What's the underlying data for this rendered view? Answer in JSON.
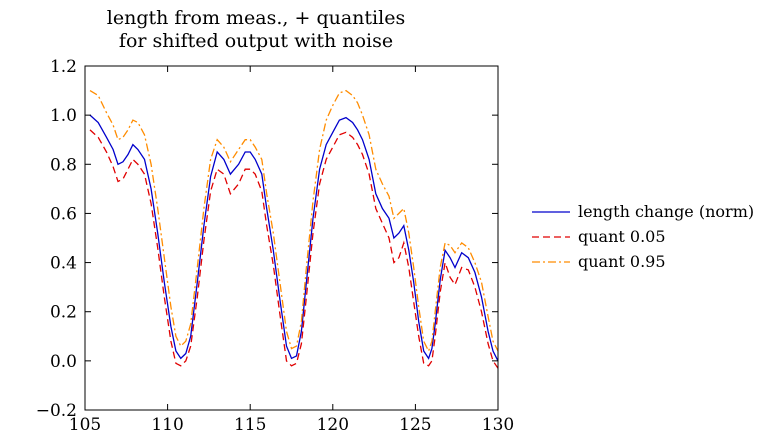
{
  "chart_data": {
    "type": "line",
    "title": [
      "length from meas., + quantiles",
      "for shifted output with noise"
    ],
    "xlabel": "",
    "ylabel": "",
    "xlim": [
      105,
      130
    ],
    "ylim": [
      -0.2,
      1.2
    ],
    "x_ticks": [
      105,
      110,
      115,
      120,
      125,
      130
    ],
    "x_tick_labels": [
      "105",
      "110",
      "115",
      "120",
      "125",
      "130"
    ],
    "y_ticks": [
      -0.2,
      0.0,
      0.2,
      0.4,
      0.6,
      0.8,
      1.0,
      1.2
    ],
    "y_tick_labels": [
      "−0.2",
      "0.0",
      "0.2",
      "0.4",
      "0.6",
      "0.8",
      "1.0",
      "1.2"
    ],
    "grid": false,
    "legend_position": "right",
    "x": [
      105.3,
      105.8,
      106.3,
      106.7,
      107.0,
      107.3,
      107.6,
      107.9,
      108.2,
      108.6,
      109.0,
      109.4,
      109.8,
      110.2,
      110.5,
      110.8,
      111.1,
      111.4,
      111.8,
      112.2,
      112.6,
      113.0,
      113.4,
      113.8,
      114.3,
      114.7,
      115.0,
      115.3,
      115.7,
      116.0,
      116.4,
      116.8,
      117.2,
      117.5,
      117.8,
      118.1,
      118.4,
      118.8,
      119.2,
      119.6,
      120.0,
      120.4,
      120.8,
      121.2,
      121.5,
      121.8,
      122.2,
      122.6,
      123.0,
      123.4,
      123.7,
      124.0,
      124.3,
      124.6,
      124.9,
      125.2,
      125.5,
      125.8,
      126.0,
      126.2,
      126.5,
      126.8,
      127.1,
      127.4,
      127.8,
      128.2,
      128.6,
      129.0,
      129.4,
      129.7,
      130.0
    ],
    "series": [
      {
        "name": "length change (norm)",
        "color": "#0000cc",
        "dash": "solid",
        "values": [
          1.0,
          0.97,
          0.91,
          0.86,
          0.8,
          0.81,
          0.84,
          0.88,
          0.86,
          0.82,
          0.7,
          0.52,
          0.32,
          0.14,
          0.04,
          0.01,
          0.03,
          0.1,
          0.32,
          0.55,
          0.75,
          0.85,
          0.82,
          0.76,
          0.8,
          0.85,
          0.85,
          0.82,
          0.76,
          0.62,
          0.45,
          0.25,
          0.06,
          0.01,
          0.02,
          0.12,
          0.32,
          0.58,
          0.78,
          0.88,
          0.93,
          0.98,
          0.99,
          0.97,
          0.94,
          0.9,
          0.82,
          0.68,
          0.62,
          0.58,
          0.5,
          0.52,
          0.55,
          0.45,
          0.32,
          0.16,
          0.04,
          0.01,
          0.05,
          0.15,
          0.33,
          0.45,
          0.42,
          0.38,
          0.44,
          0.42,
          0.36,
          0.26,
          0.12,
          0.04,
          0.0
        ]
      },
      {
        "name": "quant 0.05",
        "color": "#e00000",
        "dash": "dashed",
        "values": [
          0.94,
          0.91,
          0.85,
          0.79,
          0.73,
          0.74,
          0.78,
          0.82,
          0.8,
          0.76,
          0.64,
          0.46,
          0.26,
          0.08,
          -0.01,
          -0.02,
          0.0,
          0.06,
          0.26,
          0.49,
          0.69,
          0.78,
          0.76,
          0.68,
          0.72,
          0.78,
          0.78,
          0.76,
          0.69,
          0.55,
          0.39,
          0.19,
          0.0,
          -0.02,
          -0.01,
          0.07,
          0.26,
          0.52,
          0.72,
          0.82,
          0.87,
          0.92,
          0.93,
          0.91,
          0.88,
          0.84,
          0.76,
          0.62,
          0.56,
          0.5,
          0.4,
          0.42,
          0.48,
          0.38,
          0.24,
          0.1,
          -0.01,
          -0.02,
          0.0,
          0.1,
          0.28,
          0.4,
          0.34,
          0.31,
          0.38,
          0.37,
          0.3,
          0.2,
          0.07,
          0.0,
          -0.03
        ]
      },
      {
        "name": "quant 0.95",
        "color": "#ff8c00",
        "dash": "dashdot",
        "values": [
          1.1,
          1.08,
          1.01,
          0.96,
          0.9,
          0.91,
          0.94,
          0.98,
          0.97,
          0.92,
          0.8,
          0.62,
          0.42,
          0.22,
          0.1,
          0.06,
          0.08,
          0.15,
          0.38,
          0.62,
          0.82,
          0.9,
          0.87,
          0.81,
          0.86,
          0.9,
          0.9,
          0.87,
          0.82,
          0.68,
          0.52,
          0.32,
          0.12,
          0.05,
          0.06,
          0.16,
          0.38,
          0.65,
          0.86,
          0.98,
          1.04,
          1.09,
          1.1,
          1.08,
          1.05,
          1.0,
          0.92,
          0.78,
          0.72,
          0.67,
          0.58,
          0.6,
          0.62,
          0.52,
          0.38,
          0.22,
          0.08,
          0.04,
          0.08,
          0.2,
          0.38,
          0.48,
          0.47,
          0.44,
          0.48,
          0.46,
          0.4,
          0.32,
          0.18,
          0.08,
          0.04
        ]
      }
    ]
  }
}
